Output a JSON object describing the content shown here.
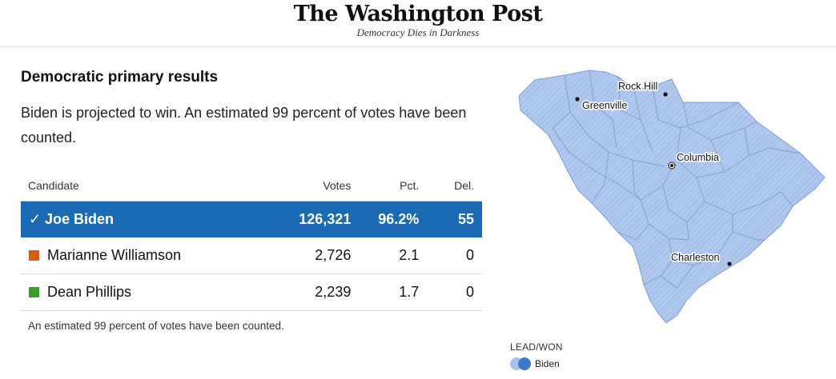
{
  "masthead": {
    "logo": "The Washington Post",
    "tagline": "Democracy Dies in Darkness"
  },
  "results": {
    "heading": "Democratic primary results",
    "summary": "Biden is projected to win. An estimated 99 percent of votes have been counted.",
    "columns": {
      "candidate": "Candidate",
      "votes": "Votes",
      "pct": "Pct.",
      "del": "Del."
    },
    "rows": [
      {
        "name": "Joe Biden",
        "votes": "126,321",
        "pct": "96.2%",
        "del": "55",
        "winner": true,
        "color": "#1a6bb3"
      },
      {
        "name": "Marianne Williamson",
        "votes": "2,726",
        "pct": "2.1",
        "del": "0",
        "color": "#d45f0e"
      },
      {
        "name": "Dean Phillips",
        "votes": "2,239",
        "pct": "1.7",
        "del": "0",
        "color": "#3f9b2f"
      }
    ],
    "winner_mark": "✓",
    "footnote": "An estimated 99 percent of votes have been counted."
  },
  "map": {
    "cities": {
      "rock_hill": "Rock Hill",
      "greenville": "Greenville",
      "columbia": "Columbia",
      "charleston": "Charleston"
    },
    "fill_color": "#a9c3ec",
    "border_color": "#7e9fd0"
  },
  "legend": {
    "title": "LEAD/WON",
    "label": "Biden"
  }
}
